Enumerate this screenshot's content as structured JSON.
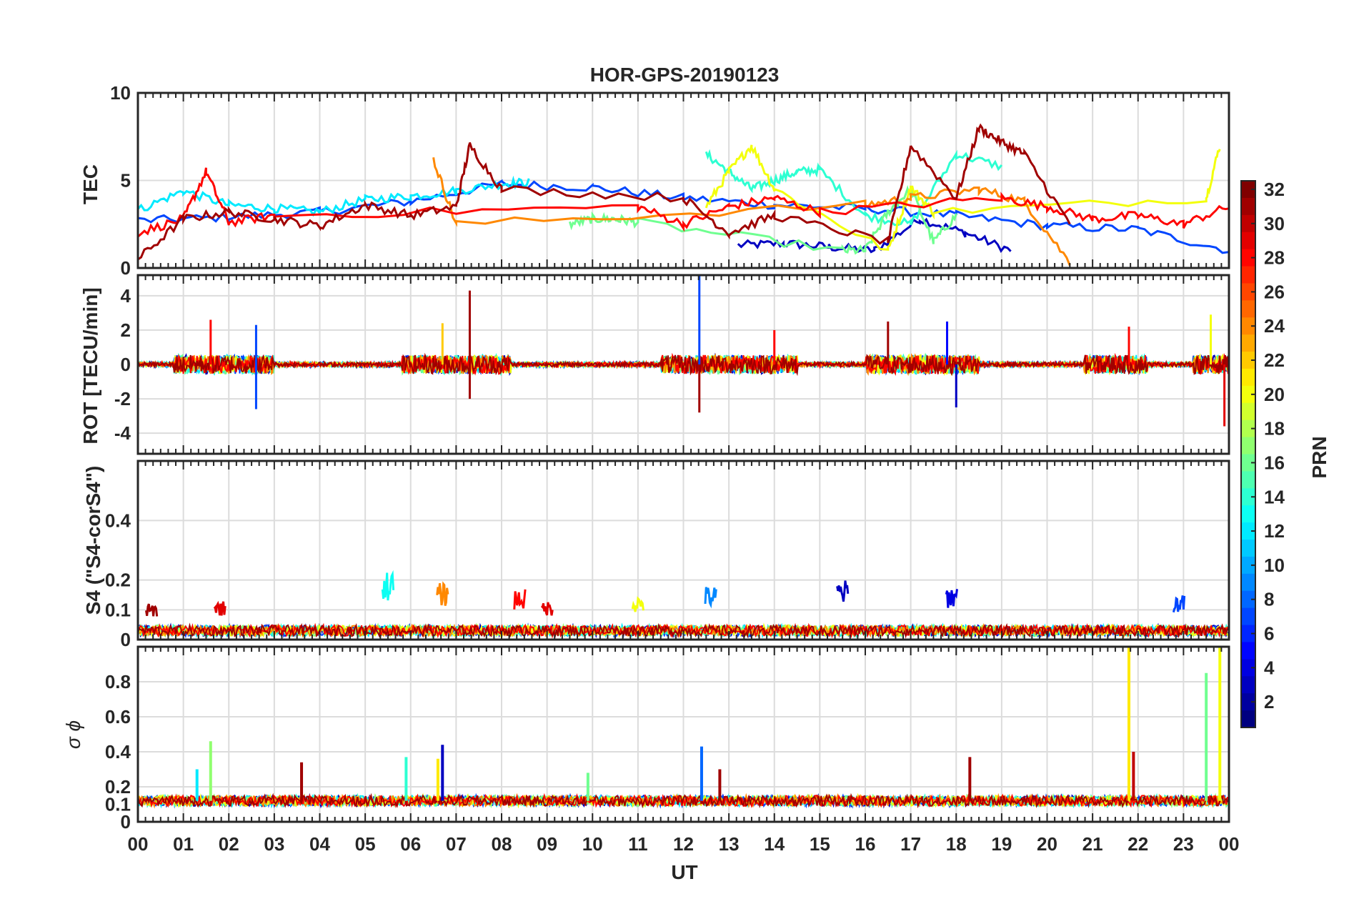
{
  "figure": {
    "title": "HOR-GPS-20190123",
    "xlabel": "UT"
  },
  "chart_data": [
    {
      "type": "line",
      "panel": "TEC",
      "ylabel": "TEC",
      "ylim": [
        0,
        10
      ],
      "yticks": [
        0,
        5,
        10
      ],
      "xlim": [
        0,
        24
      ],
      "series": [
        {
          "name": "PRN 3",
          "prn": 3,
          "x": [
            13.2,
            14.2,
            15.2,
            16.2,
            17.2,
            18.2,
            19.2
          ],
          "y": [
            1.3,
            1.4,
            1.2,
            1.0,
            2.8,
            2.0,
            1.0
          ]
        },
        {
          "name": "PRN 7",
          "prn": 7,
          "x": [
            0.0,
            2.0,
            4.0,
            6.0,
            8.0,
            10.0,
            12.0,
            14.0,
            16.0,
            18.0,
            20.0,
            22.0,
            24.0
          ],
          "y": [
            2.7,
            2.9,
            3.2,
            3.8,
            4.8,
            4.6,
            4.0,
            3.6,
            3.4,
            3.0,
            2.4,
            2.2,
            1.0
          ]
        },
        {
          "name": "PRN 12",
          "prn": 12,
          "x": [
            0.0,
            1.0,
            2.0,
            3.0,
            4.0,
            5.0,
            6.0,
            7.0,
            8.0,
            8.6
          ],
          "y": [
            3.3,
            4.4,
            3.6,
            3.4,
            3.2,
            3.9,
            4.1,
            4.4,
            4.8,
            4.9
          ]
        },
        {
          "name": "PRN 14",
          "prn": 14,
          "x": [
            12.5,
            13.0,
            13.5,
            14.0,
            14.5,
            15.0,
            16.0,
            17.0,
            18.0,
            19.0
          ],
          "y": [
            6.5,
            5.5,
            4.5,
            5.0,
            5.5,
            5.6,
            3.0,
            2.5,
            6.5,
            5.8
          ]
        },
        {
          "name": "PRN 16",
          "prn": 16,
          "x": [
            9.5,
            10.0,
            10.5,
            11.0,
            15.5,
            16.0,
            16.5,
            17.0,
            17.5,
            18.0
          ],
          "y": [
            2.5,
            2.8,
            2.8,
            2.6,
            1.0,
            1.0,
            3.2,
            4.5,
            1.5,
            3.0
          ]
        },
        {
          "name": "PRN 20",
          "prn": 20,
          "x": [
            12.5,
            13.0,
            13.5,
            14.0,
            16.5,
            17.0,
            17.5,
            23.5,
            23.8
          ],
          "y": [
            3.5,
            5.5,
            7.0,
            4.5,
            1.0,
            4.6,
            3.2,
            4.0,
            7.0
          ]
        },
        {
          "name": "PRN 24",
          "prn": 24,
          "x": [
            6.5,
            7.0,
            16.0,
            17.0,
            18.5,
            19.5,
            20.5
          ],
          "y": [
            6.2,
            2.5,
            3.6,
            4.0,
            4.5,
            3.8,
            0.3
          ]
        },
        {
          "name": "PRN 28",
          "prn": 28,
          "x": [
            0.0,
            1.0,
            1.5,
            2.0,
            3.0,
            11.0,
            12.0,
            13.0,
            14.0,
            15.0,
            19.0,
            20.0,
            21.0,
            22.0,
            23.0,
            24.0
          ],
          "y": [
            2.0,
            2.8,
            5.5,
            2.6,
            3.0,
            3.5,
            2.5,
            3.5,
            4.0,
            3.2,
            4.0,
            3.5,
            2.8,
            3.0,
            2.5,
            3.5
          ]
        },
        {
          "name": "PRN 31",
          "prn": 31,
          "x": [
            0.0,
            1.0,
            2.0,
            3.0,
            4.0,
            5.0,
            6.0,
            7.0,
            7.3,
            8.0,
            12.0,
            13.0,
            14.0,
            16.5,
            17.0,
            18.0,
            18.5,
            19.0,
            19.5,
            20.5
          ],
          "y": [
            0.5,
            2.8,
            3.2,
            2.8,
            2.4,
            3.6,
            3.0,
            3.5,
            7.0,
            4.5,
            4.0,
            2.0,
            3.0,
            1.5,
            7.0,
            4.0,
            8.0,
            7.2,
            6.5,
            2.5
          ]
        }
      ]
    },
    {
      "type": "line",
      "panel": "ROT",
      "ylabel": "ROT [TECU/min]",
      "ylim": [
        -5.2,
        5.2
      ],
      "yticks": [
        -4,
        -2,
        0,
        2,
        4
      ],
      "xlim": [
        0,
        24
      ],
      "spikes": [
        {
          "x": 1.6,
          "y": 2.6,
          "prn": 28
        },
        {
          "x": 2.6,
          "y": -2.6,
          "prn": 7
        },
        {
          "x": 2.6,
          "y": 2.3,
          "prn": 7
        },
        {
          "x": 6.7,
          "y": 2.4,
          "prn": 22
        },
        {
          "x": 7.3,
          "y": 4.3,
          "prn": 31
        },
        {
          "x": 7.3,
          "y": -2.0,
          "prn": 31
        },
        {
          "x": 12.35,
          "y": 5.2,
          "prn": 7
        },
        {
          "x": 12.35,
          "y": -2.8,
          "prn": 31
        },
        {
          "x": 14.0,
          "y": 2.0,
          "prn": 28
        },
        {
          "x": 16.5,
          "y": 2.5,
          "prn": 31
        },
        {
          "x": 17.8,
          "y": 2.5,
          "prn": 5
        },
        {
          "x": 18.0,
          "y": -2.5,
          "prn": 3
        },
        {
          "x": 21.8,
          "y": 2.2,
          "prn": 28
        },
        {
          "x": 23.6,
          "y": 2.9,
          "prn": 20
        },
        {
          "x": 23.9,
          "y": -3.6,
          "prn": 29
        }
      ],
      "active_windows": [
        [
          0.8,
          3.0
        ],
        [
          5.8,
          8.2
        ],
        [
          11.5,
          14.5
        ],
        [
          16.0,
          18.5
        ],
        [
          20.8,
          22.2
        ],
        [
          23.2,
          24.0
        ]
      ]
    },
    {
      "type": "line",
      "panel": "S4",
      "ylabel": "S4 (\"S4-corS4\")",
      "ylim": [
        0,
        0.6
      ],
      "yticks": [
        0,
        0.1,
        0.2,
        0.4
      ],
      "xlim": [
        0,
        24
      ],
      "baseline": 0.03,
      "spikes": [
        {
          "x": 0.3,
          "y": 0.12,
          "prn": 31
        },
        {
          "x": 1.8,
          "y": 0.13,
          "prn": 29
        },
        {
          "x": 5.5,
          "y": 0.23,
          "prn": 13
        },
        {
          "x": 6.7,
          "y": 0.19,
          "prn": 24
        },
        {
          "x": 8.4,
          "y": 0.17,
          "prn": 28
        },
        {
          "x": 9.0,
          "y": 0.13,
          "prn": 29
        },
        {
          "x": 11.0,
          "y": 0.15,
          "prn": 20
        },
        {
          "x": 12.6,
          "y": 0.18,
          "prn": 9
        },
        {
          "x": 15.5,
          "y": 0.2,
          "prn": 3
        },
        {
          "x": 17.9,
          "y": 0.18,
          "prn": 4
        },
        {
          "x": 22.9,
          "y": 0.15,
          "prn": 7
        }
      ]
    },
    {
      "type": "line",
      "panel": "sigma_phi",
      "ylabel": "σ ϕ",
      "ylim": [
        0,
        1.0
      ],
      "yticks": [
        0,
        0.1,
        0.2,
        0.4,
        0.6,
        0.8
      ],
      "xlim": [
        0,
        24
      ],
      "baseline": 0.12,
      "spikes": [
        {
          "x": 1.3,
          "y": 0.3,
          "prn": 12
        },
        {
          "x": 1.6,
          "y": 0.46,
          "prn": 17
        },
        {
          "x": 3.6,
          "y": 0.34,
          "prn": 31
        },
        {
          "x": 5.9,
          "y": 0.37,
          "prn": 14
        },
        {
          "x": 6.6,
          "y": 0.36,
          "prn": 21
        },
        {
          "x": 6.7,
          "y": 0.44,
          "prn": 3
        },
        {
          "x": 9.9,
          "y": 0.28,
          "prn": 16
        },
        {
          "x": 12.4,
          "y": 0.43,
          "prn": 8
        },
        {
          "x": 12.8,
          "y": 0.3,
          "prn": 31
        },
        {
          "x": 18.3,
          "y": 0.37,
          "prn": 31
        },
        {
          "x": 21.8,
          "y": 1.0,
          "prn": 21
        },
        {
          "x": 21.9,
          "y": 0.4,
          "prn": 30
        },
        {
          "x": 23.5,
          "y": 0.85,
          "prn": 16
        },
        {
          "x": 23.8,
          "y": 1.0,
          "prn": 20
        }
      ]
    }
  ],
  "xaxis": {
    "tick_labels": [
      "00",
      "01",
      "02",
      "03",
      "04",
      "05",
      "06",
      "07",
      "08",
      "09",
      "10",
      "11",
      "12",
      "13",
      "14",
      "15",
      "16",
      "17",
      "18",
      "19",
      "20",
      "21",
      "22",
      "23",
      "00"
    ]
  },
  "colorbar": {
    "label": "PRN",
    "range": [
      1,
      32
    ],
    "tick_labels": [
      "2",
      "4",
      "6",
      "8",
      "10",
      "12",
      "14",
      "16",
      "18",
      "20",
      "22",
      "24",
      "26",
      "28",
      "30",
      "32"
    ]
  }
}
